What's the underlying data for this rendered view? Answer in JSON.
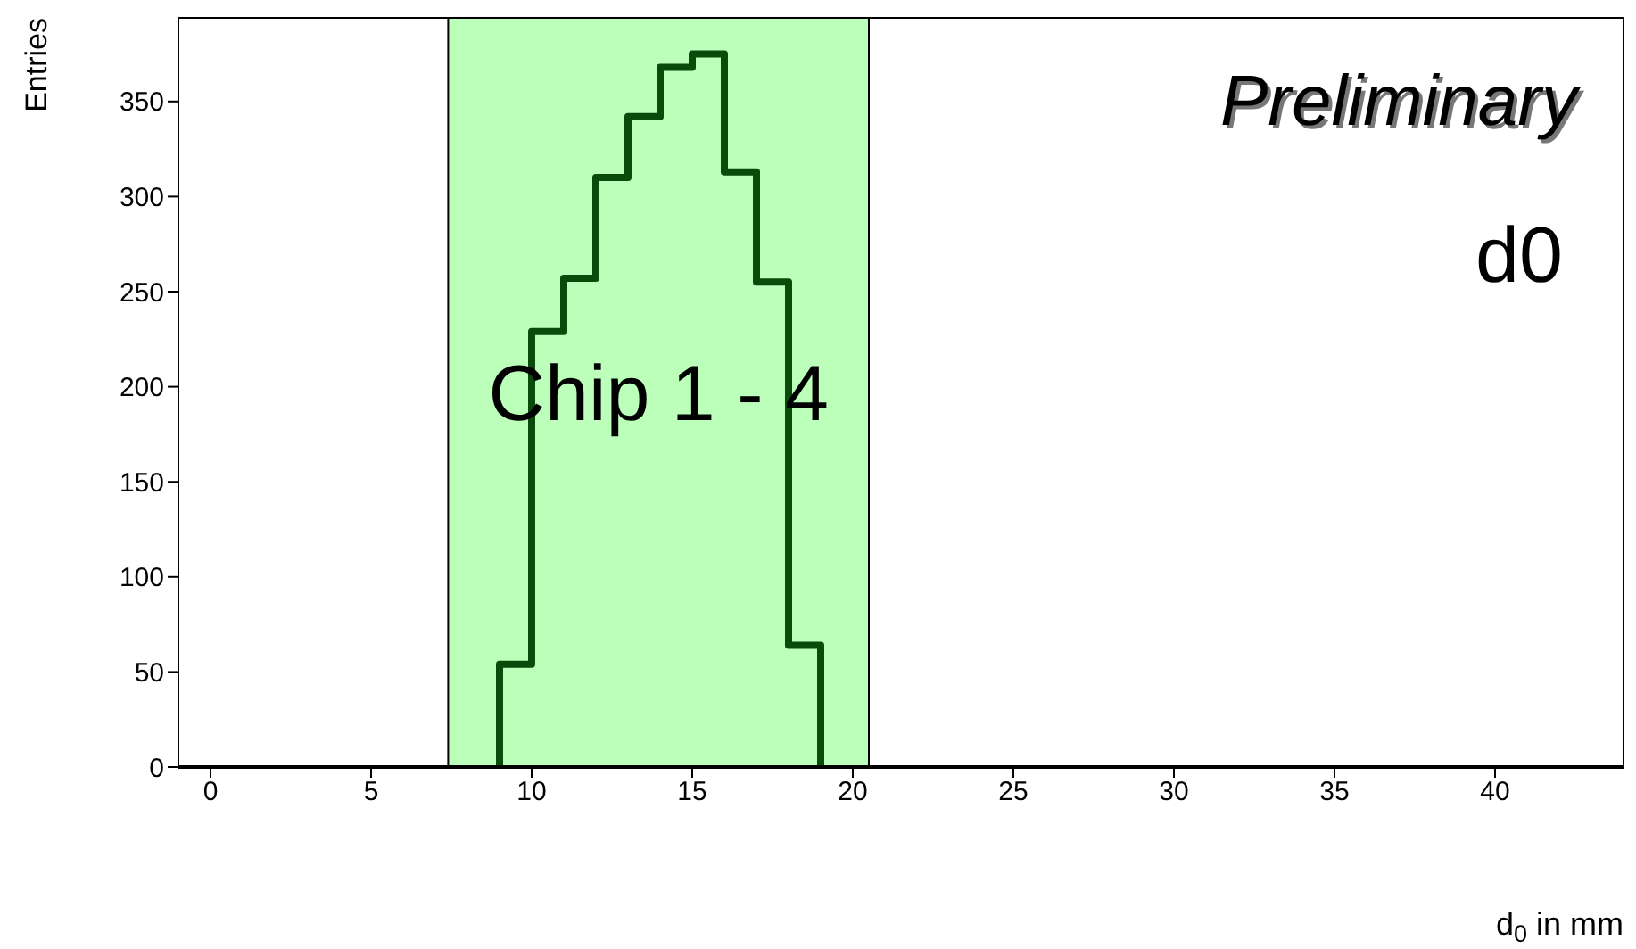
{
  "chart_data": {
    "type": "histogram",
    "xlabel": "d$_{0}$ in mm",
    "ylabel": "Entries",
    "bins": [
      9,
      10,
      11,
      12,
      13,
      14,
      15,
      16,
      17,
      18,
      19
    ],
    "values": [
      54,
      229,
      257,
      310,
      342,
      368,
      375,
      313,
      255,
      64
    ],
    "color": "#0a4a0a",
    "xlim": [
      -1,
      44
    ],
    "xticks": [
      0,
      5,
      10,
      15,
      20,
      25,
      30,
      35,
      40
    ],
    "ylim": [
      0,
      394
    ],
    "yticks": [
      0,
      50,
      100,
      150,
      200,
      250,
      300,
      350
    ],
    "bands": [
      {
        "axis": "x",
        "from": 7.4,
        "to": 20.5,
        "label": "Chip 1 - 4",
        "color": "#bbffbb"
      }
    ],
    "annotations": [
      "Preliminary",
      "d0"
    ]
  }
}
